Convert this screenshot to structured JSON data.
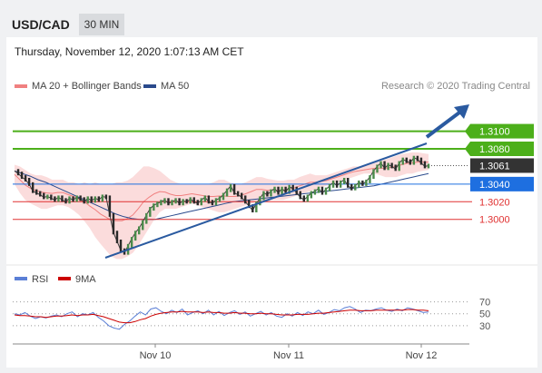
{
  "header": {
    "symbol": "USD/CAD",
    "timeframe": "30 MIN"
  },
  "datetime": "Thursday, November 12, 2020 1:07:13 AM CET",
  "colors": {
    "bollinger": "#f08080",
    "ma50": "#2a4a8c",
    "rsi": "#5b7fd6",
    "rsi_ma": "#cc0000",
    "resistance": "#4caf1a",
    "current": "#333333",
    "pivot": "#1e6fe0",
    "support": "#e03030",
    "trend": "#2a5aa0"
  },
  "chart_data": [
    {
      "type": "line",
      "title": "",
      "source": "Research © 2020 Trading Central",
      "legend": [
        {
          "name": "MA 20 + Bollinger Bands",
          "color": "#f08080"
        },
        {
          "name": "MA 50",
          "color": "#2a4a8c"
        }
      ],
      "x_labels": [
        "Nov 10",
        "Nov 11",
        "Nov 12"
      ],
      "y_range": [
        1.294,
        1.315
      ],
      "levels": [
        {
          "label": "1.3100",
          "value": 1.31,
          "role": "resistance"
        },
        {
          "label": "1.3080",
          "value": 1.308,
          "role": "resistance"
        },
        {
          "label": "1.3061",
          "value": 1.3061,
          "role": "current"
        },
        {
          "label": "1.3040",
          "value": 1.304,
          "role": "pivot"
        },
        {
          "label": "1.3020",
          "value": 1.302,
          "role": "support"
        },
        {
          "label": "1.3000",
          "value": 1.3,
          "role": "support"
        }
      ],
      "price_close": [
        1.3055,
        1.3052,
        1.3048,
        1.3045,
        1.304,
        1.3032,
        1.303,
        1.3028,
        1.3025,
        1.3026,
        1.3024,
        1.3022,
        1.3025,
        1.3022,
        1.302,
        1.3024,
        1.3022,
        1.3025,
        1.3023,
        1.302,
        1.3024,
        1.3021,
        1.3024,
        1.3022,
        1.3026,
        1.3025,
        1.3005,
        1.2985,
        1.2975,
        1.2965,
        1.2962,
        1.297,
        1.2978,
        1.2985,
        1.299,
        1.2997,
        1.3005,
        1.3012,
        1.3016,
        1.3018,
        1.302,
        1.3022,
        1.3018,
        1.302,
        1.3022,
        1.3018,
        1.3021,
        1.302,
        1.3023,
        1.302,
        1.3018,
        1.3022,
        1.3025,
        1.302,
        1.3018,
        1.3022,
        1.3024,
        1.3028,
        1.3033,
        1.3038,
        1.303,
        1.3028,
        1.3025,
        1.302,
        1.3015,
        1.301,
        1.3018,
        1.3024,
        1.303,
        1.3028,
        1.3032,
        1.3035,
        1.303,
        1.3035,
        1.3031,
        1.3037,
        1.3035,
        1.303,
        1.3025,
        1.3022,
        1.3026,
        1.303,
        1.3032,
        1.3035,
        1.303,
        1.3034,
        1.3038,
        1.3042,
        1.3038,
        1.3042,
        1.3045,
        1.3038,
        1.3035,
        1.3038,
        1.3042,
        1.304,
        1.3043,
        1.3048,
        1.3055,
        1.306,
        1.3064,
        1.3058,
        1.3062,
        1.306,
        1.3057,
        1.3064,
        1.3068,
        1.3066,
        1.3064,
        1.307,
        1.3068,
        1.3064,
        1.306,
        1.3061
      ],
      "bollinger_upper": [
        1.3062,
        1.306,
        1.3056,
        1.3052,
        1.305,
        1.305,
        1.3048,
        1.3045,
        1.3045,
        1.3045,
        1.3042,
        1.3042,
        1.304,
        1.3042,
        1.304,
        1.3042,
        1.304,
        1.304,
        1.304,
        1.3042,
        1.3042,
        1.3044,
        1.3048,
        1.3054,
        1.306,
        1.306,
        1.3058,
        1.3055,
        1.305,
        1.3045,
        1.3042,
        1.304,
        1.304,
        1.304,
        1.304,
        1.304,
        1.304,
        1.3042,
        1.3045,
        1.3045,
        1.3042,
        1.304,
        1.304,
        1.3042,
        1.3045,
        1.3048,
        1.3048,
        1.3046,
        1.3045,
        1.3044,
        1.3044,
        1.3045,
        1.3045,
        1.3048,
        1.305,
        1.3052,
        1.305,
        1.305,
        1.305,
        1.3052,
        1.3054,
        1.3056,
        1.3058,
        1.306,
        1.306,
        1.306,
        1.3062,
        1.3064,
        1.3066,
        1.3068,
        1.307,
        1.3072,
        1.3074,
        1.3075,
        1.3076,
        1.3076,
        1.3075,
        1.3074
      ],
      "bollinger_lower": [
        1.304,
        1.303,
        1.3022,
        1.3018,
        1.3015,
        1.3012,
        1.3012,
        1.3014,
        1.3016,
        1.3016,
        1.3014,
        1.301,
        1.3005,
        1.2998,
        1.299,
        1.298,
        1.2972,
        1.2965,
        1.2958,
        1.2955,
        1.2955,
        1.2958,
        1.2962,
        1.297,
        1.298,
        1.299,
        1.3,
        1.3008,
        1.3012,
        1.3012,
        1.3012,
        1.3014,
        1.3016,
        1.3018,
        1.3016,
        1.3014,
        1.3012,
        1.301,
        1.3008,
        1.3008,
        1.301,
        1.3012,
        1.3014,
        1.3016,
        1.3018,
        1.302,
        1.302,
        1.302,
        1.3022,
        1.3022,
        1.3022,
        1.3024,
        1.3026,
        1.3028,
        1.303,
        1.3032,
        1.3034,
        1.3036,
        1.3038,
        1.304,
        1.3042,
        1.3044,
        1.3046,
        1.3048,
        1.305,
        1.3052,
        1.3052,
        1.3052,
        1.305,
        1.3048,
        1.3048,
        1.3048,
        1.305,
        1.3052,
        1.3052,
        1.3054,
        1.3055,
        1.3056
      ],
      "ma50": [
        1.3055,
        1.3052,
        1.3049,
        1.3045,
        1.3042,
        1.3038,
        1.3034,
        1.303,
        1.3026,
        1.3022,
        1.3018,
        1.3014,
        1.301,
        1.3006,
        1.3003,
        1.3001,
        1.3,
        1.3,
        1.3,
        1.3002,
        1.3004,
        1.3006,
        1.3008,
        1.301,
        1.3012,
        1.3014,
        1.3016,
        1.3018,
        1.302,
        1.3021,
        1.3022,
        1.3023,
        1.3024,
        1.3025,
        1.3026,
        1.3027,
        1.3028,
        1.3029,
        1.303,
        1.3031,
        1.3032,
        1.3033,
        1.3034,
        1.3035,
        1.3036,
        1.3037,
        1.3038,
        1.304,
        1.3042,
        1.3044,
        1.3046,
        1.3048,
        1.305,
        1.3052
      ]
    },
    {
      "type": "line",
      "title": "",
      "legend": [
        {
          "name": "RSI",
          "color": "#5b7fd6"
        },
        {
          "name": "9MA",
          "color": "#cc0000"
        }
      ],
      "y_range": [
        10,
        80
      ],
      "y_ticks": [
        "70",
        "50",
        "30"
      ],
      "rsi": [
        50,
        48,
        52,
        46,
        42,
        45,
        43,
        46,
        48,
        45,
        50,
        53,
        45,
        50,
        48,
        52,
        44,
        38,
        30,
        26,
        24,
        32,
        38,
        46,
        53,
        48,
        58,
        60,
        54,
        50,
        56,
        52,
        58,
        48,
        52,
        55,
        50,
        56,
        48,
        54,
        47,
        52,
        55,
        49,
        53,
        46,
        50,
        54,
        48,
        52,
        46,
        44,
        50,
        46,
        52,
        47,
        53,
        50,
        56,
        49,
        52,
        57,
        55,
        60,
        62,
        58,
        52,
        56,
        55,
        58,
        60,
        56,
        54,
        58,
        55,
        60,
        58,
        55,
        52,
        53
      ],
      "rsi_ma": [
        48,
        47,
        47,
        46,
        45,
        45,
        44,
        45,
        46,
        46,
        47,
        48,
        47,
        48,
        48,
        49,
        47,
        45,
        42,
        39,
        36,
        35,
        35,
        37,
        40,
        42,
        46,
        49,
        51,
        52,
        53,
        53,
        54,
        53,
        53,
        53,
        52,
        53,
        52,
        52,
        51,
        51,
        52,
        51,
        51,
        50,
        50,
        51,
        50,
        50,
        49,
        48,
        48,
        48,
        49,
        49,
        49,
        50,
        51,
        51,
        52,
        53,
        54,
        55,
        56,
        56,
        55,
        55,
        55,
        56,
        56,
        56,
        56,
        56,
        56,
        57,
        57,
        56,
        56,
        55
      ]
    }
  ]
}
